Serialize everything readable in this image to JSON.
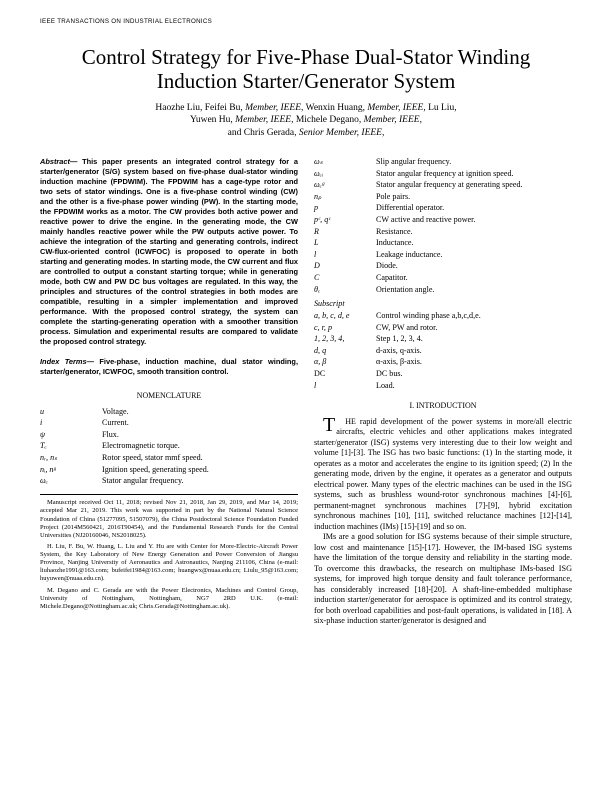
{
  "header": "IEEE TRANSACTIONS ON INDUSTRIAL ELECTRONICS",
  "title": "Control Strategy for Five-Phase Dual-Stator Winding Induction Starter/Generator System",
  "authors_line1": "Haozhe Liu, Feifei Bu, Member, IEEE, Wenxin Huang, Member, IEEE, Lu Liu,",
  "authors_line2": "Yuwen Hu, Member, IEEE, Michele Degano, Member, IEEE,",
  "authors_line3": "and Chris Gerada, Senior Member, IEEE,",
  "abstract_lead": "Abstract—",
  "abstract_body": " This paper presents an integrated control strategy for a starter/generator (S/G) system based on five-phase dual-stator winding induction machine (FPDWIM). The FPDWIM has a cage-type rotor and two sets of stator windings. One is a five-phase control winding (CW) and the other is a five-phase power winding (PW). In the starting mode, the FPDWIM works as a motor. The CW provides both active power and reactive power to drive the engine. In the generating mode, the CW mainly handles reactive power while the PW outputs active power. To achieve the integration of the starting and generating controls, indirect CW-flux-oriented control (ICWFOC) is proposed to operate in both starting and generating modes. In starting mode, the CW current and flux are controlled to output a constant starting torque; while in generating mode, both CW and PW DC bus voltages are regulated. In this way, the principles and structures of the control strategies in both modes are compatible, resulting in a simpler implementation and improved performance. With the proposed control strategy, the system can complete the starting-generating operation with a smoother transition process. Simulation and experimental results are compared to validate the proposed control strategy.",
  "index_lead": "Index Terms—",
  "index_body": " Five-phase, induction machine, dual stator winding, starter/generator, ICWFOC, smooth transition control.",
  "nomen_heading": "NOMENCLATURE",
  "nomen_items": [
    {
      "sym": "u",
      "desc": "Voltage."
    },
    {
      "sym": "i",
      "desc": "Current."
    },
    {
      "sym": "ψ",
      "desc": "Flux."
    },
    {
      "sym": "Tₑ",
      "desc": "Electromagnetic torque."
    },
    {
      "sym": "nᵣ, nₛ",
      "desc": "Rotor speed, stator mmf speed."
    },
    {
      "sym": "nᵢ, nᵍ",
      "desc": "Ignition speed, generating speed."
    },
    {
      "sym": "ωₑ",
      "desc": "Stator angular frequency."
    }
  ],
  "nomen_right": [
    {
      "sym": "ωₛ",
      "desc": "Slip angular frequency."
    },
    {
      "sym": "ωₑᵢ",
      "desc": "Stator angular frequency at ignition speed."
    },
    {
      "sym": "ωₑᵍ",
      "desc": "Stator angular frequency at generating speed."
    },
    {
      "sym": "nₚ",
      "desc": "Pole pairs."
    },
    {
      "sym": "p",
      "desc": "Differential operator."
    },
    {
      "sym": "pᶜ, qᶜ",
      "desc": "CW active and reactive power."
    },
    {
      "sym": "R",
      "desc": "Resistance."
    },
    {
      "sym": "L",
      "desc": "Inductance."
    },
    {
      "sym": "l",
      "desc": "Leakage inductance."
    },
    {
      "sym": "D",
      "desc": "Diode."
    },
    {
      "sym": "C",
      "desc": "Capatitor."
    },
    {
      "sym": "θₑ",
      "desc": "Orientation angle."
    }
  ],
  "subscript_head": "Subscript",
  "subscript_items": [
    {
      "sym": "a, b, c, d, e",
      "desc": "Control winding phase a,b,c,d,e."
    },
    {
      "sym": "c, r, p",
      "desc": "CW, PW and rotor."
    },
    {
      "sym": "1, 2, 3, 4,",
      "desc": "Step 1, 2, 3, 4."
    },
    {
      "sym": "d, q",
      "desc": "d-axis, q-axis."
    },
    {
      "sym": "α, β",
      "desc": "α-axis, β-axis."
    },
    {
      "sym": "DC",
      "desc": "DC bus."
    },
    {
      "sym": "l",
      "desc": "Load."
    }
  ],
  "intro_heading": "I.    INTRODUCTION",
  "intro_p1_first": "HE",
  "intro_p1": " rapid development of the power systems in more/all electric aircrafts, electric vehicles and other applications makes integrated starter/generator (ISG) systems very interesting due to their low weight and volume [1]-[3]. The ISG has two basic functions: (1) In the starting mode, it operates as a motor and accelerates the engine to its ignition speed; (2) In the generating mode, driven by the engine, it operates as a generator and outputs electrical power. Many types of the electric machines can be used in the ISG systems, such as brushless wound-rotor synchronous machines [4]-[6], permanent-magnet synchronous machines [7]-[9], hybrid excitation synchronous machines [10], [11], switched reluctance machines [12]-[14], induction machines (IMs) [15]-[19] and so on.",
  "intro_p2": "IMs are a good solution for ISG systems because of their simple structure, low cost and maintenance [15]-[17]. However, the IM-based ISG systems have the limitation of the torque density and reliability in the starting mode. To overcome this drawbacks, the research on multiphase IMs-based ISG systems, for improved high torque density and fault tolerance performance, has considerably increased [18]-[20]. A shaft-line-embedded multiphase induction starter/generator for aerospace is optimized and its control strategy, for both overload capabilities and post-fault operations, is validated in [18]. A six-phase induction starter/generator is designed and",
  "footnote_p1": "Manuscript received Oct 11, 2018; revised Nov 21, 2018, Jan 29, 2019, and Mar 14, 2019; accepted Mar 21, 2019. This work was supported in part by the National Natural Science Foundation of China (51277095, 51507079), the China Postdoctoral Science Foundation Funded Project (2014M560421, 2016T90454), and the Fundamental Research Funds for the Central Universities (NJ20160046, NS2018025).",
  "footnote_p2": "H. Liu, F. Bu, W. Huang, L. Liu and Y. Hu are with Center for More-Electric-Aircraft Power System, the Key Laboratory of New Energy Generation and Power Conversion of Jiangsu Province, Nanjing University of Aeronautics and Astronautics, Nanjing 211106, China (e-mail: liuhaozhe1991@163.com; bufeifei1984@163.com; huangwx@nuaa.edu.cn; Liulu_95@163.com; huyuwen@nuaa.edu.cn).",
  "footnote_p3": "M. Degano and C. Gerada are with the Power Electronics, Machines and Control Group, University of Nottingham, Nottingham, NG7 2RD U.K. (e-mail: Michele.Degano@Nottingham.ac.uk; Chris.Gerada@Nottingham.ac.uk)."
}
